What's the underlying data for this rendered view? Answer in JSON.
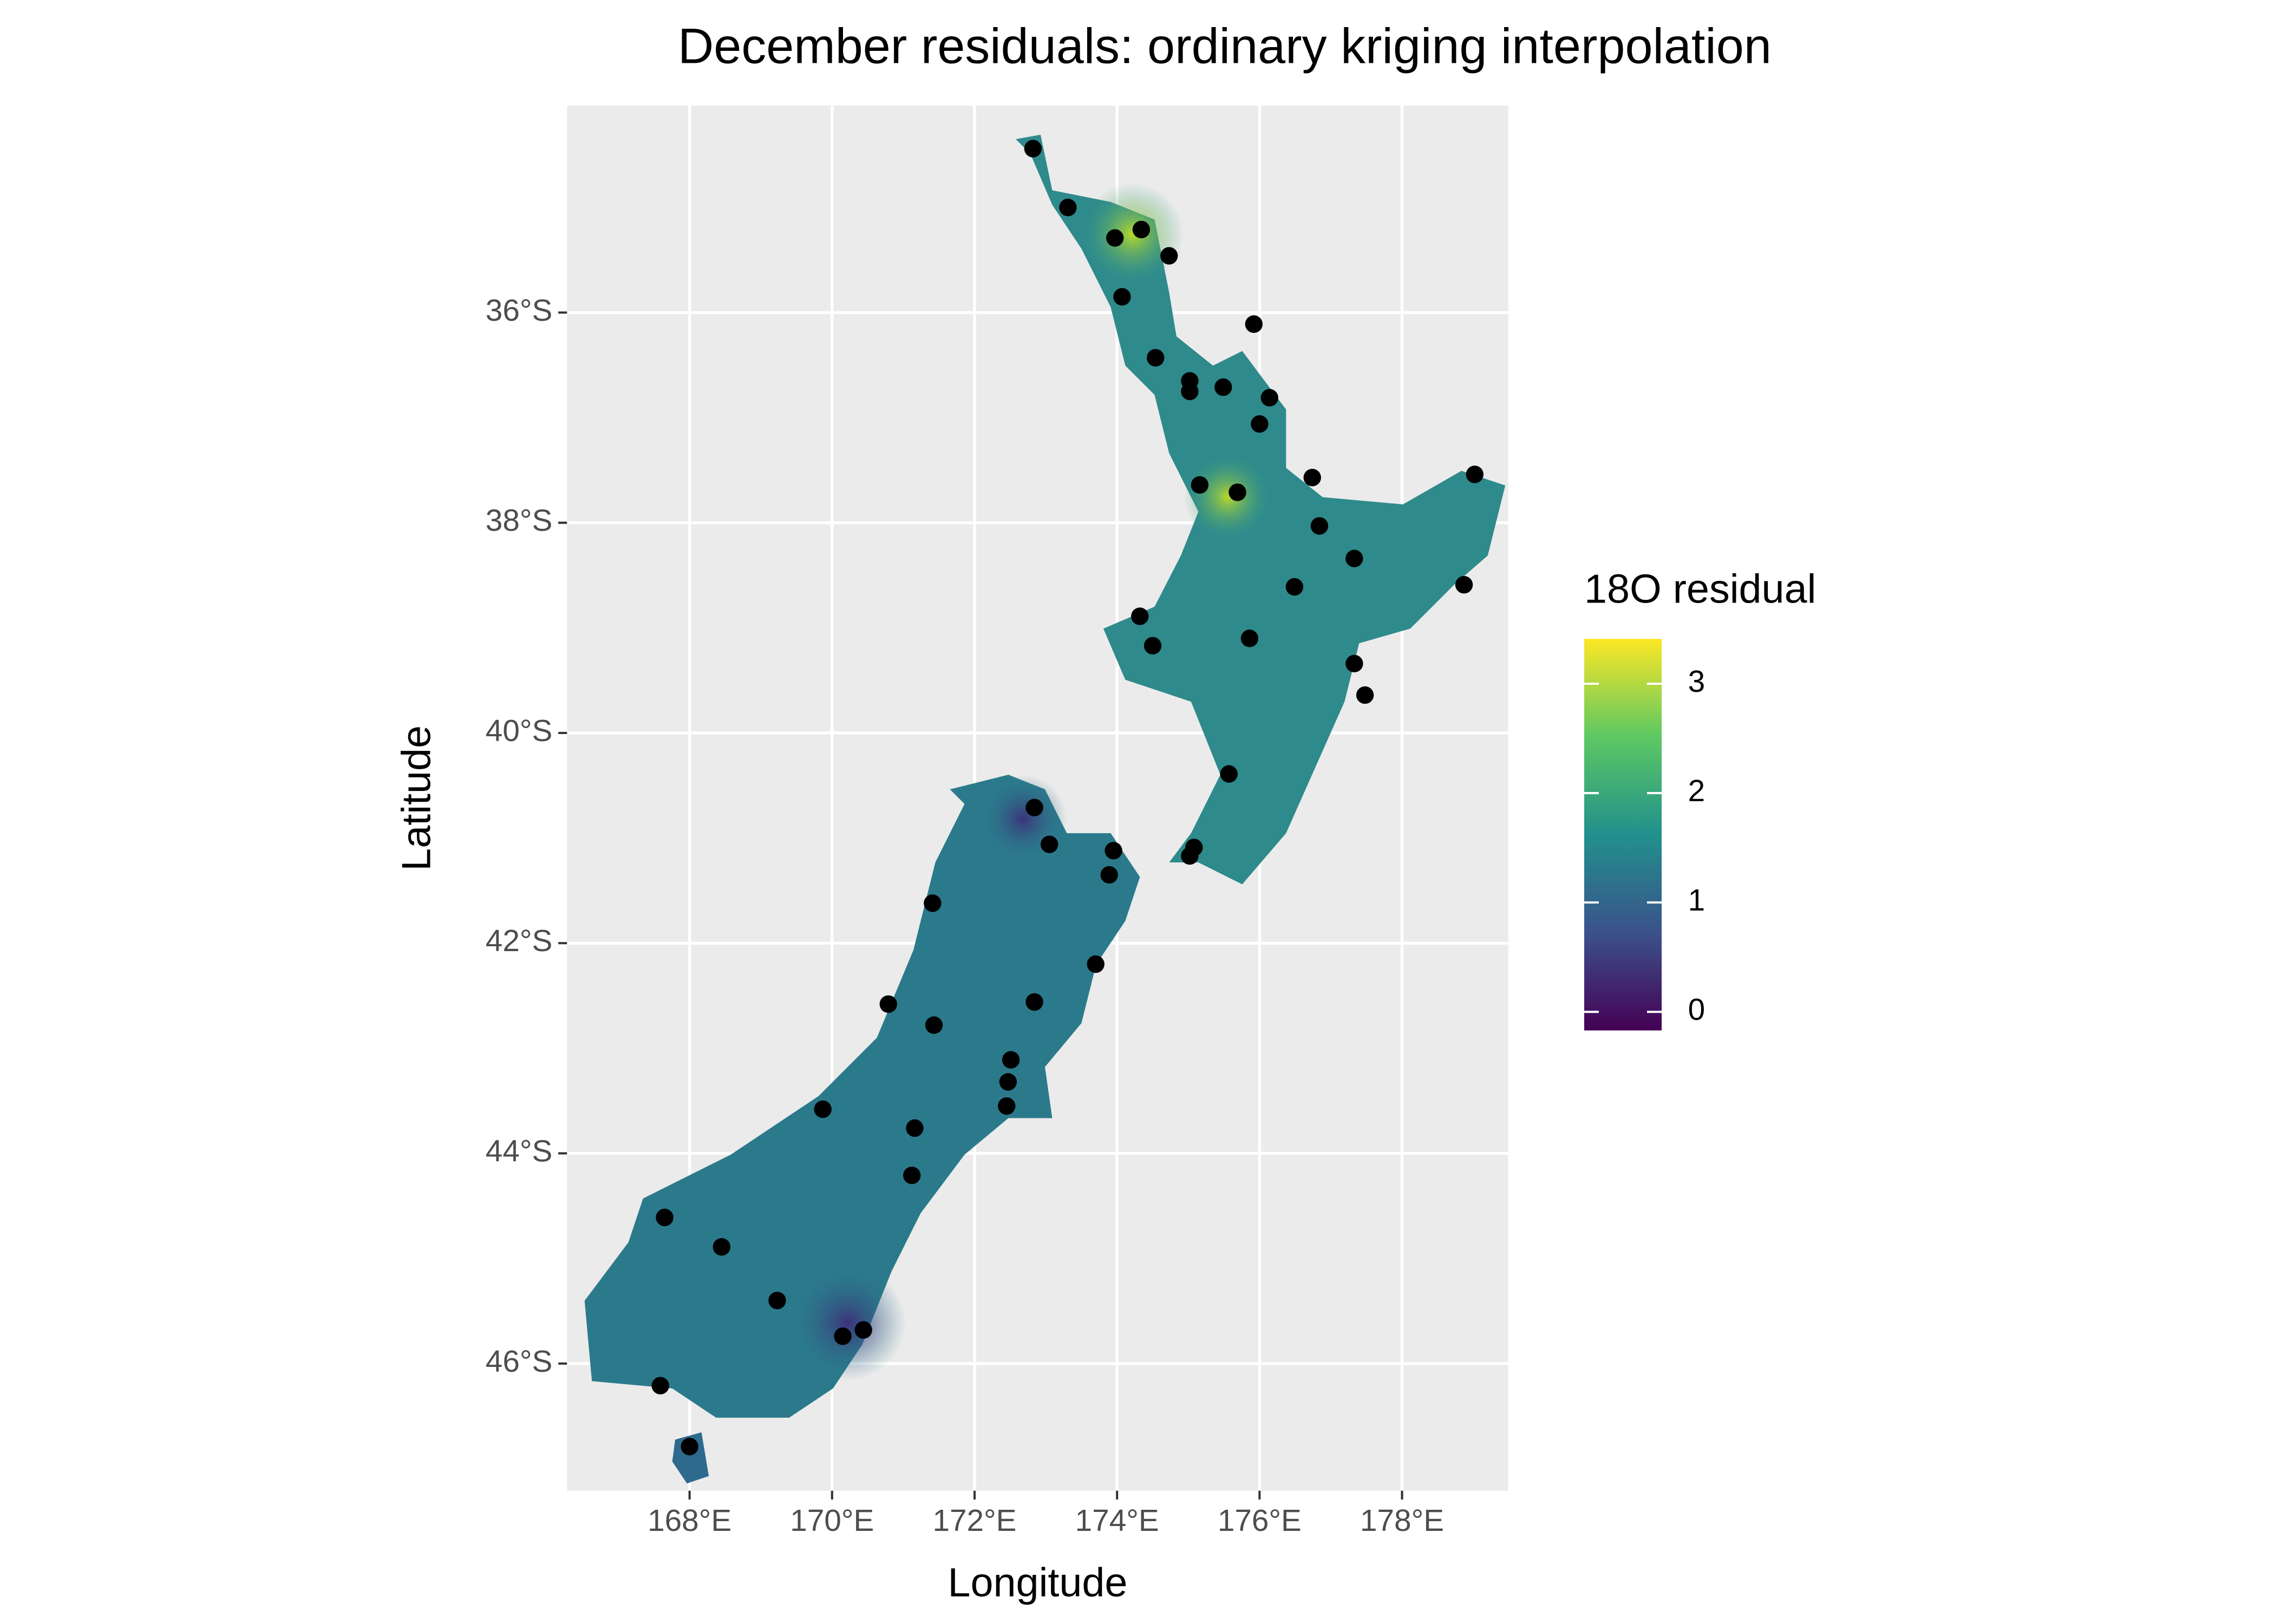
{
  "chart_data": {
    "type": "map",
    "title": "December residuals: ordinary kriging interpolation",
    "x_label": "Longitude",
    "y_label": "Latitude",
    "xlim": [
      166.28,
      179.49
    ],
    "ylim": [
      -47.21,
      -34.03
    ],
    "xticks": [
      {
        "value": 168,
        "label": "168°E"
      },
      {
        "value": 170,
        "label": "170°E"
      },
      {
        "value": 172,
        "label": "172°E"
      },
      {
        "value": 174,
        "label": "174°E"
      },
      {
        "value": 176,
        "label": "176°E"
      },
      {
        "value": 178,
        "label": "178°E"
      }
    ],
    "yticks": [
      {
        "value": -36,
        "label": "36°S"
      },
      {
        "value": -38,
        "label": "38°S"
      },
      {
        "value": -40,
        "label": "40°S"
      },
      {
        "value": -42,
        "label": "42°S"
      },
      {
        "value": -44,
        "label": "44°S"
      },
      {
        "value": -46,
        "label": "46°S"
      }
    ],
    "grid": true,
    "panel_color": "#ebebeb",
    "grid_color": "#ffffff",
    "point_color": "#000000",
    "x": [
      172.82,
      173.31,
      173.97,
      174.34,
      174.73,
      174.07,
      175.92,
      174.54,
      175.02,
      175.02,
      175.49,
      176.14,
      176.0,
      176.74,
      179.02,
      175.16,
      175.69,
      176.84,
      177.33,
      178.87,
      176.49,
      174.32,
      175.86,
      174.5,
      177.33,
      177.48,
      175.57,
      172.84,
      173.05,
      173.95,
      175.08,
      175.02,
      173.89,
      171.41,
      173.7,
      170.79,
      172.84,
      171.43,
      172.51,
      172.47,
      172.45,
      169.87,
      171.16,
      171.12,
      167.65,
      168.45,
      169.23,
      170.15,
      170.44,
      167.59,
      168.0
    ],
    "y": [
      -34.44,
      -35.0,
      -35.29,
      -35.21,
      -35.46,
      -35.85,
      -36.11,
      -36.43,
      -36.65,
      -36.75,
      -36.71,
      -36.81,
      -37.06,
      -37.57,
      -37.54,
      -37.64,
      -37.71,
      -38.03,
      -38.34,
      -38.59,
      -38.61,
      -38.89,
      -39.1,
      -39.17,
      -39.34,
      -39.64,
      -40.39,
      -40.71,
      -41.06,
      -41.12,
      -41.09,
      -41.17,
      -41.35,
      -41.62,
      -42.2,
      -42.58,
      -42.56,
      -42.78,
      -43.11,
      -43.32,
      -43.55,
      -43.58,
      -43.76,
      -44.21,
      -44.61,
      -44.89,
      -45.4,
      -45.74,
      -45.68,
      -46.21,
      -46.79
    ],
    "legend": {
      "title": "18O residual",
      "lim": [
        -0.17,
        3.41
      ],
      "ticks": [
        0,
        1,
        2,
        3
      ],
      "colorscale": [
        "#440154",
        "#3b528b",
        "#21908c",
        "#5dc863",
        "#fde725"
      ]
    }
  }
}
